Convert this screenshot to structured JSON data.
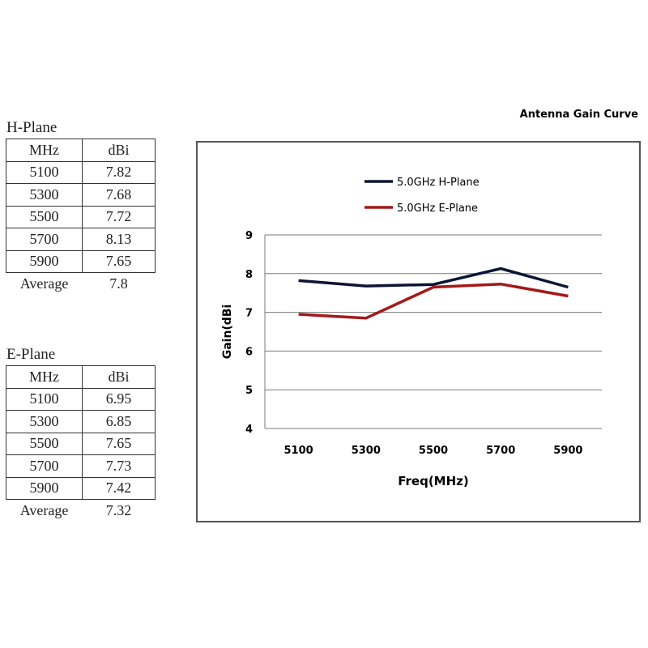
{
  "h_table": {
    "caption": "H-Plane",
    "headers": [
      "MHz",
      "dBi"
    ],
    "rows": [
      [
        "5100",
        "7.82"
      ],
      [
        "5300",
        "7.68"
      ],
      [
        "5500",
        "7.72"
      ],
      [
        "5700",
        "8.13"
      ],
      [
        "5900",
        "7.65"
      ]
    ],
    "average_label": "Average",
    "average_value": "7.8"
  },
  "e_table": {
    "caption": "E-Plane",
    "headers": [
      "MHz",
      "dBi"
    ],
    "rows": [
      [
        "5100",
        "6.95"
      ],
      [
        "5300",
        "6.85"
      ],
      [
        "5500",
        "7.65"
      ],
      [
        "5700",
        "7.73"
      ],
      [
        "5900",
        "7.42"
      ]
    ],
    "average_label": "Average",
    "average_value": "7.32"
  },
  "chart_data": {
    "type": "line",
    "title": "Antenna Gain Curve",
    "xlabel": "Freq(MHz)",
    "ylabel": "Gain(dBi",
    "categories": [
      "5100",
      "5300",
      "5500",
      "5700",
      "5900"
    ],
    "ylim": [
      4,
      9
    ],
    "yticks": [
      "4",
      "5",
      "6",
      "7",
      "8",
      "9"
    ],
    "grid": true,
    "legend_position": "top-left",
    "series": [
      {
        "name": "5.0GHz H-Plane",
        "color": "#0b1534",
        "values": [
          7.82,
          7.68,
          7.72,
          8.13,
          7.65
        ]
      },
      {
        "name": "5.0GHz E-Plane",
        "color": "#a31919",
        "values": [
          6.95,
          6.85,
          7.65,
          7.73,
          7.42
        ]
      }
    ]
  }
}
